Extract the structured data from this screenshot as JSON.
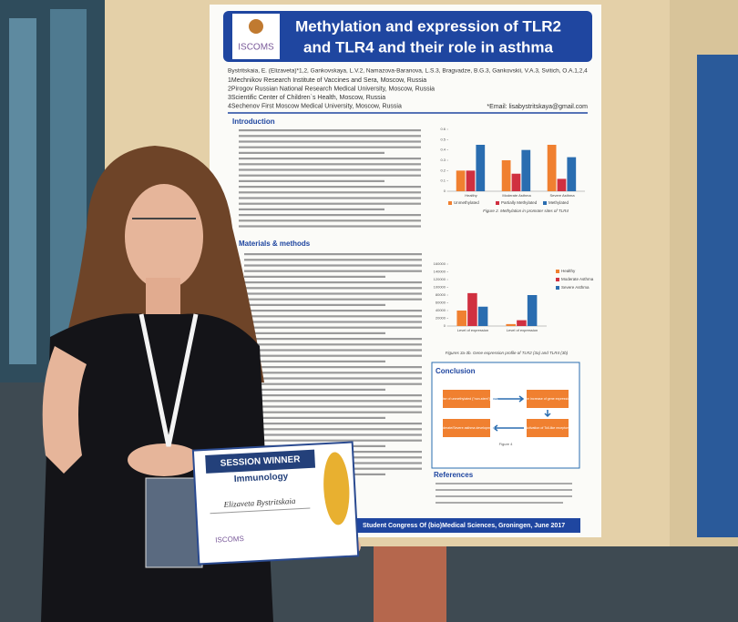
{
  "poster": {
    "logo": "ISCOMS",
    "title": [
      "Methylation and expression of TLR2",
      "and TLR4 and their role in asthma"
    ],
    "authors": "Bystritskaia, E. (Elizaveta)*1,2, Gankovskaya, L.V.2, Namazova-Baranova, L.S.3, Bragvadze, B.G.3, Gankovskii, V.A.3, Svitich, O.A.1,2,4",
    "affiliations": [
      "1Mechnikov Research Institute of Vaccines and Sera, Moscow, Russia",
      "2Pirogov Russian National Research Medical University, Moscow, Russia",
      "3Scientific Center of Children`s Health, Moscow, Russia",
      "4Sechenov First Moscow Medical University, Moscow, Russia"
    ],
    "email": "*Email: lisabystritskaya@gmail.com",
    "sections": {
      "introduction": "Introduction",
      "methods": "Materials & methods",
      "conclusion": "Conclusion",
      "references": "References"
    },
    "charts": [
      {
        "type": "bar",
        "caption": "Figure 2. Methylation in promoter sites of TLR4",
        "categories": [
          "Healthy",
          "Moderate Asthma",
          "Severe Asthma"
        ],
        "series": [
          {
            "name": "Unmethylated",
            "color": "#f08030",
            "values": [
              0.2,
              0.3,
              0.45
            ]
          },
          {
            "name": "Partially Methylated",
            "color": "#d03040",
            "values": [
              0.2,
              0.17,
              0.12
            ]
          },
          {
            "name": "Methylated",
            "color": "#2a6db0",
            "values": [
              0.45,
              0.4,
              0.33
            ]
          }
        ],
        "ylim": [
          0,
          0.6
        ],
        "yticks": [
          0,
          0.1,
          0.2,
          0.3,
          0.4,
          0.5,
          0.6
        ],
        "legend": "bottom"
      },
      {
        "type": "bar",
        "caption": "Figures 3a-3b. Gene expression profile of TLR2 (3a) and TLR4 (3b)",
        "categories": [
          "Level of expression",
          "Level of expression"
        ],
        "series": [
          {
            "name": "Healthy",
            "color": "#f08030",
            "values": [
              40000,
              5000
            ]
          },
          {
            "name": "Moderate Asthma",
            "color": "#d03040",
            "values": [
              85000,
              15000
            ]
          },
          {
            "name": "Severe Asthma",
            "color": "#2a6db0",
            "values": [
              50000,
              80000
            ]
          }
        ],
        "ylim": [
          0,
          160000
        ],
        "yticks": [
          0,
          20000,
          40000,
          60000,
          80000,
          100000,
          120000,
          140000,
          160000
        ],
        "legend": "right"
      }
    ],
    "conclusion_boxes": [
      "The rise of unmethylated (\"non-stem\") sites",
      "The increase of gene expression",
      "Moderate/Severe asthma development",
      "Activation of Toll-like receptors"
    ],
    "figure4": "Figure 4",
    "footer": "Student Congress Of (bio)Medical Sciences, Groningen, June 2017"
  },
  "certificate": {
    "heading": "SESSION WINNER",
    "topic": "Immunology",
    "name": "Elizaveta Bystritskaia",
    "logo": "ISCOMS"
  }
}
